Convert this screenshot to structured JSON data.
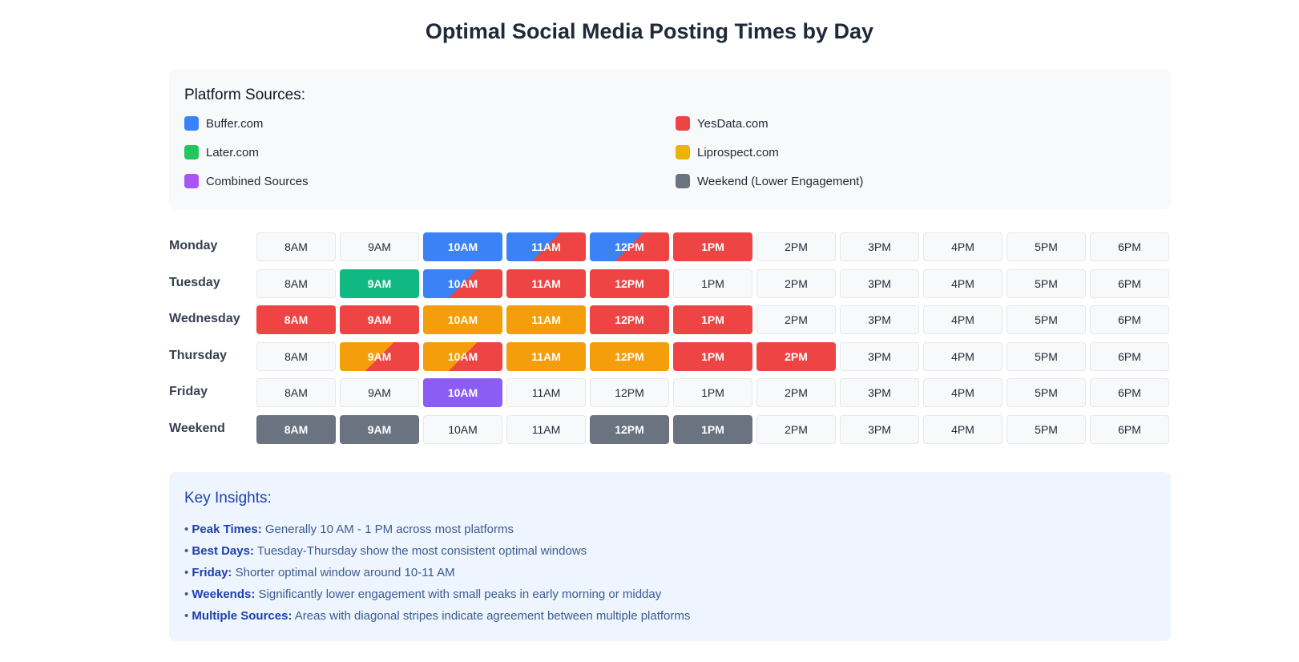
{
  "title": "Optimal Social Media Posting Times by Day",
  "legend": {
    "title": "Platform Sources:",
    "items": [
      {
        "label": "Buffer.com",
        "color": "#3b82f6"
      },
      {
        "label": "YesData.com",
        "color": "#ef4444"
      },
      {
        "label": "Later.com",
        "color": "#22c55e"
      },
      {
        "label": "Liprospect.com",
        "color": "#eab308"
      },
      {
        "label": "Combined Sources",
        "color": "#a855f7"
      },
      {
        "label": "Weekend (Lower Engagement)",
        "color": "#6b7280"
      }
    ]
  },
  "chart_data": {
    "type": "heatmap",
    "title": "Optimal Social Media Posting Times by Day",
    "times": [
      "8AM",
      "9AM",
      "10AM",
      "11AM",
      "12PM",
      "1PM",
      "2PM",
      "3PM",
      "4PM",
      "5PM",
      "6PM"
    ],
    "days": [
      "Monday",
      "Tuesday",
      "Wednesday",
      "Thursday",
      "Friday",
      "Weekend"
    ],
    "source_colors": {
      "buffer": "#3b82f6",
      "yesdata": "#ef4444",
      "later": "#10b981",
      "liprospect": "#f59e0b",
      "combined": "#8b5cf6",
      "weekend": "#6b7280"
    },
    "cells": [
      [
        [],
        [],
        [
          "buffer"
        ],
        [
          "buffer",
          "yesdata"
        ],
        [
          "buffer",
          "yesdata"
        ],
        [
          "yesdata"
        ],
        [],
        [],
        [],
        [],
        []
      ],
      [
        [],
        [
          "later"
        ],
        [
          "buffer",
          "yesdata"
        ],
        [
          "yesdata"
        ],
        [
          "yesdata"
        ],
        [],
        [],
        [],
        [],
        [],
        []
      ],
      [
        [
          "yesdata"
        ],
        [
          "yesdata"
        ],
        [
          "liprospect"
        ],
        [
          "liprospect"
        ],
        [
          "yesdata"
        ],
        [
          "yesdata"
        ],
        [],
        [],
        [],
        [],
        []
      ],
      [
        [],
        [
          "liprospect",
          "yesdata"
        ],
        [
          "liprospect",
          "yesdata"
        ],
        [
          "liprospect"
        ],
        [
          "liprospect"
        ],
        [
          "yesdata"
        ],
        [
          "yesdata"
        ],
        [],
        [],
        [],
        []
      ],
      [
        [],
        [],
        [
          "combined"
        ],
        [],
        [],
        [],
        [],
        [],
        [],
        [],
        []
      ],
      [
        [
          "weekend"
        ],
        [
          "weekend"
        ],
        [],
        [],
        [
          "weekend"
        ],
        [
          "weekend"
        ],
        [],
        [],
        [],
        [],
        []
      ]
    ]
  },
  "insights": {
    "title": "Key Insights:",
    "items": [
      {
        "bullet": "• ",
        "label": "Peak Times:",
        "text": " Generally 10 AM - 1 PM across most platforms"
      },
      {
        "bullet": "• ",
        "label": "Best Days:",
        "text": " Tuesday-Thursday show the most consistent optimal windows"
      },
      {
        "bullet": "• ",
        "label": "Friday:",
        "text": " Shorter optimal window around 10-11 AM"
      },
      {
        "bullet": "• ",
        "label": "Weekends:",
        "text": " Significantly lower engagement with small peaks in early morning or midday"
      },
      {
        "bullet": "• ",
        "label": "Multiple Sources:",
        "text": " Areas with diagonal stripes indicate agreement between multiple platforms"
      }
    ]
  }
}
